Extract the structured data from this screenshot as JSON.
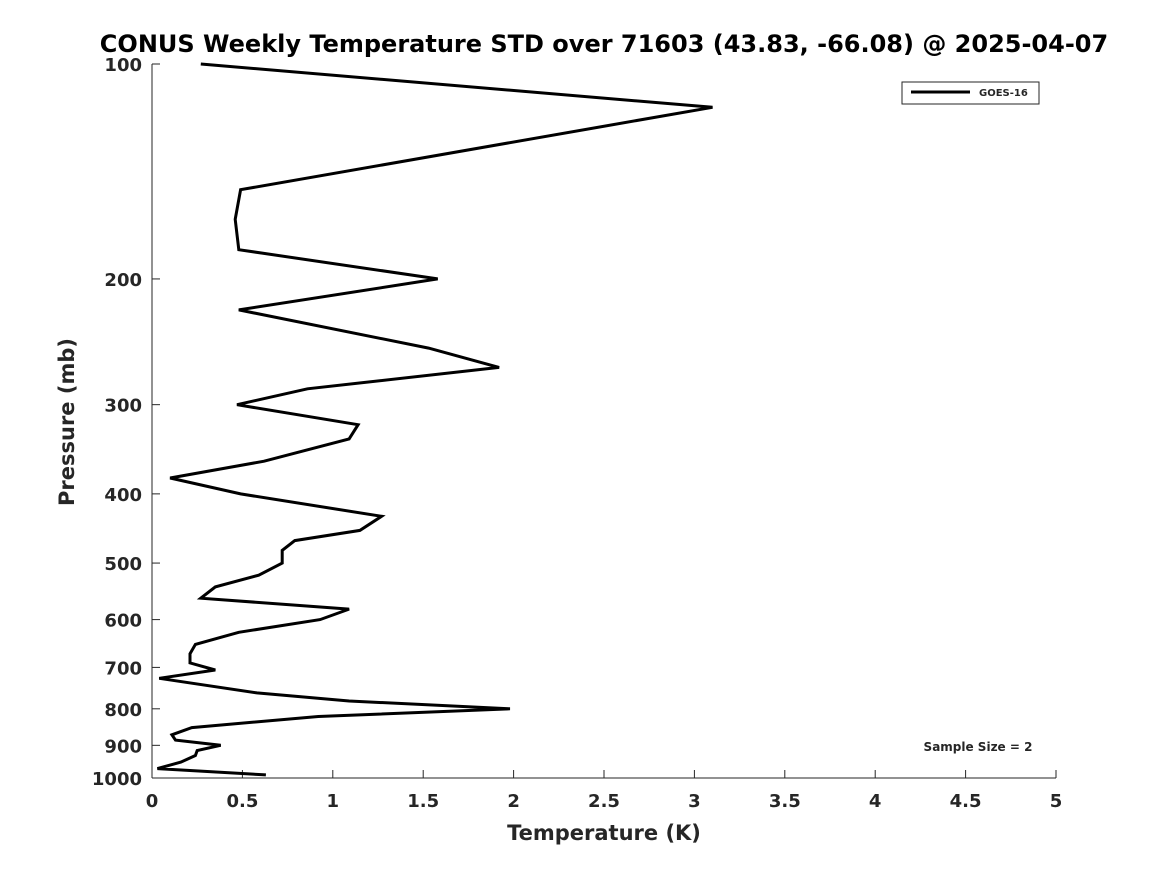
{
  "chart_data": {
    "type": "line",
    "title": "CONUS Weekly Temperature STD over 71603 (43.83, -66.08) @ 2025-04-07",
    "xlabel": "Temperature (K)",
    "ylabel": "Pressure (mb)",
    "xlim": [
      0,
      5
    ],
    "ylim": [
      100,
      1000
    ],
    "y_scale": "log",
    "y_reversed": true,
    "grid": false,
    "legend_position": "top-right",
    "x_ticks": [
      "0",
      "0.5",
      "1",
      "1.5",
      "2",
      "2.5",
      "3",
      "3.5",
      "4",
      "4.5",
      "5"
    ],
    "y_ticks": [
      "100",
      "200",
      "300",
      "400",
      "500",
      "600",
      "700",
      "800",
      "900",
      "1000"
    ],
    "annotation": "Sample Size = 2",
    "series": [
      {
        "name": "GOES-16",
        "color": "#000000",
        "points": [
          [
            0.27,
            100
          ],
          [
            3.1,
            115
          ],
          [
            0.49,
            150
          ],
          [
            0.46,
            165
          ],
          [
            0.48,
            182
          ],
          [
            1.58,
            200
          ],
          [
            0.48,
            221
          ],
          [
            1.53,
            250
          ],
          [
            1.92,
            266
          ],
          [
            0.86,
            285
          ],
          [
            0.47,
            300
          ],
          [
            1.14,
            320
          ],
          [
            1.09,
            335
          ],
          [
            0.62,
            360
          ],
          [
            0.1,
            380
          ],
          [
            0.49,
            400
          ],
          [
            1.27,
            430
          ],
          [
            1.15,
            450
          ],
          [
            0.79,
            465
          ],
          [
            0.72,
            480
          ],
          [
            0.72,
            500
          ],
          [
            0.59,
            520
          ],
          [
            0.35,
            540
          ],
          [
            0.27,
            560
          ],
          [
            1.09,
            580
          ],
          [
            0.93,
            600
          ],
          [
            0.48,
            625
          ],
          [
            0.24,
            650
          ],
          [
            0.21,
            670
          ],
          [
            0.21,
            690
          ],
          [
            0.35,
            706
          ],
          [
            0.04,
            725
          ],
          [
            0.58,
            760
          ],
          [
            1.09,
            780
          ],
          [
            1.98,
            800
          ],
          [
            0.92,
            820
          ],
          [
            0.22,
            850
          ],
          [
            0.11,
            870
          ],
          [
            0.13,
            885
          ],
          [
            0.38,
            900
          ],
          [
            0.25,
            915
          ],
          [
            0.24,
            930
          ],
          [
            0.16,
            950
          ],
          [
            0.03,
            970
          ],
          [
            0.63,
            990
          ]
        ]
      }
    ]
  }
}
